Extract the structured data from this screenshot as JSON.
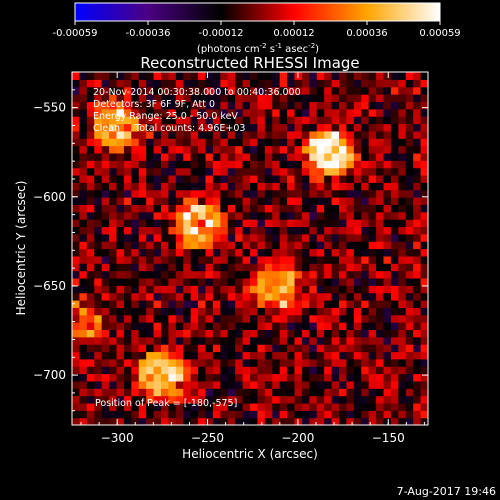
{
  "chart_data": {
    "type": "heatmap",
    "title": "Reconstructed RHESSI Image",
    "xlabel": "Heliocentric X (arcsec)",
    "ylabel": "Heliocentric Y (arcsec)",
    "xlim": [
      -325,
      -128
    ],
    "ylim": [
      -728,
      -530
    ],
    "x_ticks": [
      -300,
      -250,
      -200,
      -150
    ],
    "y_ticks": [
      -550,
      -600,
      -650,
      -700
    ],
    "colorbar": {
      "min": -0.00059,
      "max": 0.00059,
      "ticks": [
        "-0.00059",
        "-0.00036",
        "-0.00012",
        "0.00012",
        "0.00036",
        "0.00059"
      ],
      "label_prefix": "(photons cm",
      "label_exp1": "-2",
      "label_mid": " s",
      "label_exp2": "-1",
      "label_mid2": " asec",
      "label_exp3": "-2",
      "label_suffix": ")",
      "colors": [
        "#0000ff",
        "#4b0082",
        "#000000",
        "#ff0000",
        "#ffa500",
        "#ffffff"
      ]
    },
    "annotations": [
      "20-Nov-2014 00:30:38.000 to 00:40:36.000",
      "Detectors: 3F 6F 9F, Att 0",
      "Energy Range: 25.0 - 50.0 keV",
      "Clean     Total counts: 4.96E+03"
    ],
    "peak_text": "Position of Peak = [-180,-575]",
    "peak": [
      -180,
      -575
    ],
    "sources": [
      {
        "x": -182,
        "y": -575,
        "peak": 0.00059
      },
      {
        "x": -255,
        "y": -615,
        "peak": 0.0005
      },
      {
        "x": -212,
        "y": -650,
        "peak": 0.00047
      },
      {
        "x": -275,
        "y": -700,
        "peak": 0.00048
      },
      {
        "x": -300,
        "y": -560,
        "peak": 0.00045
      },
      {
        "x": -320,
        "y": -670,
        "peak": 0.00028
      }
    ]
  },
  "footer": {
    "timestamp": "7-Aug-2017 19:46"
  }
}
